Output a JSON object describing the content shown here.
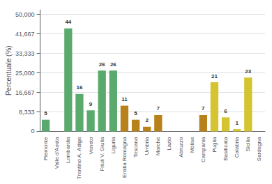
{
  "chart_data": {
    "type": "bar",
    "categories": [
      "Piemonte",
      "Valle d'Aosta",
      "Lombardia",
      "Trentino A. Adige",
      "Veneto",
      "Friuli V. Giulia",
      "Liguria",
      "Emilia Romagna",
      "Toscana",
      "Umbria",
      "Marche",
      "Lazio",
      "Abruzzo",
      "Molise",
      "Campania",
      "Puglia",
      "Basilicata",
      "Calabria",
      "Sicilia",
      "Sardegna"
    ],
    "values": [
      5,
      0,
      44,
      16,
      9,
      26,
      26,
      11,
      5,
      2,
      7,
      0,
      0,
      0,
      7,
      21,
      6,
      1,
      23,
      0
    ],
    "colors": [
      "#5aaa6e",
      "#5aaa6e",
      "#5aaa6e",
      "#5aaa6e",
      "#5aaa6e",
      "#5aaa6e",
      "#5aaa6e",
      "#b8821a",
      "#b8821a",
      "#b8821a",
      "#b8821a",
      "#b8821a",
      "#b8821a",
      "#b8821a",
      "#b8821a",
      "#d4c430",
      "#d4c430",
      "#d4c430",
      "#d4c430",
      "#d4c430"
    ],
    "ylabel": "Percentuale (%)",
    "ylim": [
      0,
      52
    ],
    "yticks": [
      0,
      {
        "value": 8.333,
        "label": "8,333"
      },
      {
        "value": 16.667,
        "label": "16,667"
      },
      {
        "value": 25.0,
        "label": "25,000"
      },
      {
        "value": 33.333,
        "label": "33,333"
      },
      {
        "value": 41.667,
        "label": "41,667"
      },
      {
        "value": 50.0,
        "label": "50,000"
      }
    ],
    "grid": true,
    "data_labels": true
  }
}
